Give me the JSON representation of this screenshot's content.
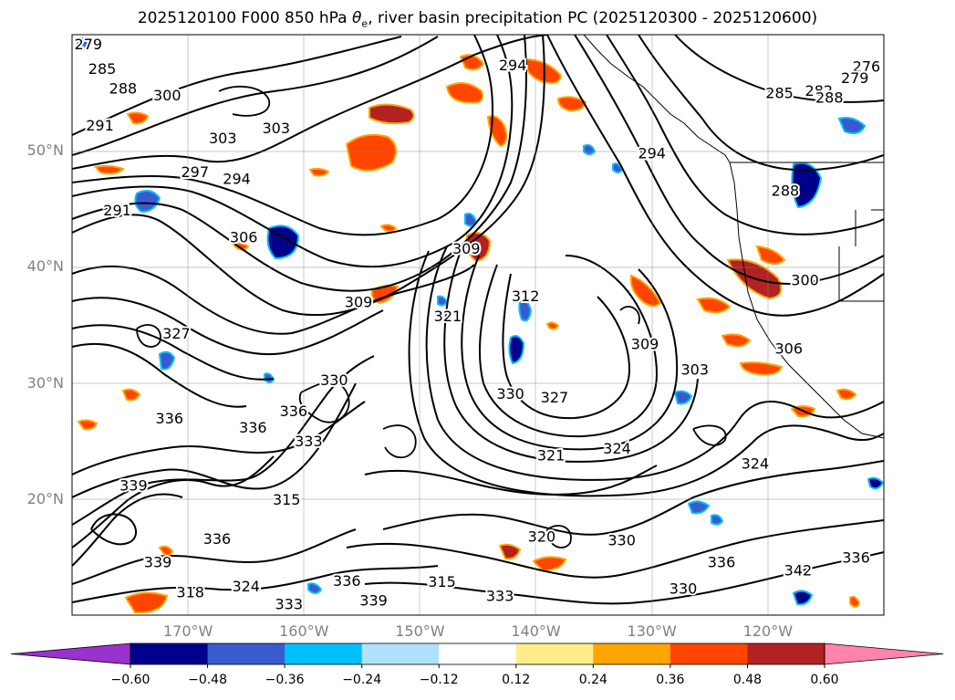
{
  "title_main": "2025120100 F000 850 hPa ",
  "title_symbol": "θ",
  "title_sub": "e",
  "title_rest": ", river basin precipitation PC (2025120300 - 2025120600)",
  "map": {
    "lon_range": [
      -180,
      -110
    ],
    "lat_range": [
      10,
      60
    ],
    "lat_labels": [
      {
        "lat": 50,
        "text": "50°N"
      },
      {
        "lat": 40,
        "text": "40°N"
      },
      {
        "lat": 30,
        "text": "30°N"
      },
      {
        "lat": 20,
        "text": "20°N"
      }
    ],
    "lon_labels": [
      {
        "lon": -170,
        "text": "170°W"
      },
      {
        "lon": -160,
        "text": "160°W"
      },
      {
        "lon": -150,
        "text": "150°W"
      },
      {
        "lon": -140,
        "text": "140°W"
      },
      {
        "lon": -130,
        "text": "130°W"
      },
      {
        "lon": -120,
        "text": "120°W"
      }
    ],
    "contour_labels": [
      {
        "lon": -178.6,
        "lat": 59.2,
        "text": "279"
      },
      {
        "lon": -177.4,
        "lat": 57.1,
        "text": "285"
      },
      {
        "lon": -175.6,
        "lat": 55.4,
        "text": "288"
      },
      {
        "lon": -171.8,
        "lat": 54.8,
        "text": "300"
      },
      {
        "lon": -177.6,
        "lat": 52.2,
        "text": "291"
      },
      {
        "lon": -167.0,
        "lat": 51.1,
        "text": "303"
      },
      {
        "lon": -162.4,
        "lat": 52.0,
        "text": "303"
      },
      {
        "lon": -169.4,
        "lat": 48.2,
        "text": "297"
      },
      {
        "lon": -165.8,
        "lat": 47.6,
        "text": "294"
      },
      {
        "lon": -176.1,
        "lat": 44.9,
        "text": "291"
      },
      {
        "lon": -165.2,
        "lat": 42.6,
        "text": "306"
      },
      {
        "lon": -155.3,
        "lat": 37.0,
        "text": "309"
      },
      {
        "lon": -147.6,
        "lat": 35.8,
        "text": "321"
      },
      {
        "lon": -146.0,
        "lat": 41.6,
        "text": "309"
      },
      {
        "lon": -140.9,
        "lat": 37.5,
        "text": "312"
      },
      {
        "lon": -142.2,
        "lat": 29.1,
        "text": "330"
      },
      {
        "lon": -138.4,
        "lat": 28.8,
        "text": "327"
      },
      {
        "lon": -130.6,
        "lat": 33.4,
        "text": "309"
      },
      {
        "lon": -126.3,
        "lat": 31.2,
        "text": "303"
      },
      {
        "lon": -133.0,
        "lat": 24.4,
        "text": "324"
      },
      {
        "lon": -138.7,
        "lat": 23.8,
        "text": "321"
      },
      {
        "lon": -121.1,
        "lat": 23.1,
        "text": "324"
      },
      {
        "lon": -118.2,
        "lat": 33.0,
        "text": "306"
      },
      {
        "lon": -116.8,
        "lat": 38.9,
        "text": "300"
      },
      {
        "lon": -118.5,
        "lat": 46.6,
        "text": "288"
      },
      {
        "lon": -119.0,
        "lat": 55.0,
        "text": "285"
      },
      {
        "lon": -115.6,
        "lat": 55.2,
        "text": "282"
      },
      {
        "lon": -114.7,
        "lat": 54.6,
        "text": "288"
      },
      {
        "lon": -111.5,
        "lat": 57.3,
        "text": "276"
      },
      {
        "lon": -112.5,
        "lat": 56.3,
        "text": "279"
      },
      {
        "lon": -171.6,
        "lat": 27.0,
        "text": "336"
      },
      {
        "lon": -164.4,
        "lat": 26.2,
        "text": "336"
      },
      {
        "lon": -159.6,
        "lat": 25.0,
        "text": "333"
      },
      {
        "lon": -174.7,
        "lat": 21.2,
        "text": "339"
      },
      {
        "lon": -172.6,
        "lat": 14.6,
        "text": "339"
      },
      {
        "lon": -169.8,
        "lat": 12.0,
        "text": "318"
      },
      {
        "lon": -167.5,
        "lat": 16.6,
        "text": "336"
      },
      {
        "lon": -161.5,
        "lat": 20.0,
        "text": "315"
      },
      {
        "lon": -165.0,
        "lat": 12.5,
        "text": "324"
      },
      {
        "lon": -161.3,
        "lat": 11.0,
        "text": "333"
      },
      {
        "lon": -154.0,
        "lat": 11.3,
        "text": "339"
      },
      {
        "lon": -156.3,
        "lat": 13.0,
        "text": "336"
      },
      {
        "lon": -148.1,
        "lat": 12.9,
        "text": "315"
      },
      {
        "lon": -143.1,
        "lat": 11.7,
        "text": "333"
      },
      {
        "lon": -132.6,
        "lat": 16.5,
        "text": "330"
      },
      {
        "lon": -127.3,
        "lat": 12.3,
        "text": "330"
      },
      {
        "lon": -124.0,
        "lat": 14.6,
        "text": "336"
      },
      {
        "lon": -117.4,
        "lat": 13.9,
        "text": "342"
      },
      {
        "lon": -112.4,
        "lat": 15.0,
        "text": "336"
      },
      {
        "lon": -142.0,
        "lat": 57.4,
        "text": "294"
      },
      {
        "lon": -130.0,
        "lat": 49.8,
        "text": "294"
      },
      {
        "lon": -139.5,
        "lat": 16.8,
        "text": "320"
      },
      {
        "lon": -171.0,
        "lat": 34.3,
        "text": "327"
      },
      {
        "lon": -160.9,
        "lat": 27.6,
        "text": "336"
      },
      {
        "lon": -157.4,
        "lat": 30.3,
        "text": "330"
      }
    ]
  },
  "colorbar": {
    "colors": [
      "#9a32cd",
      "#00008b",
      "#3a5bd0",
      "#00bfff",
      "#b0e2ff",
      "#ffffff",
      "#ffec8b",
      "#ffa500",
      "#ff4500",
      "#b22222",
      "#ff83ab"
    ],
    "ticks": [
      "−0.60",
      "−0.48",
      "−0.36",
      "−0.24",
      "−0.12",
      "0.12",
      "0.24",
      "0.36",
      "0.48",
      "0.60"
    ]
  }
}
